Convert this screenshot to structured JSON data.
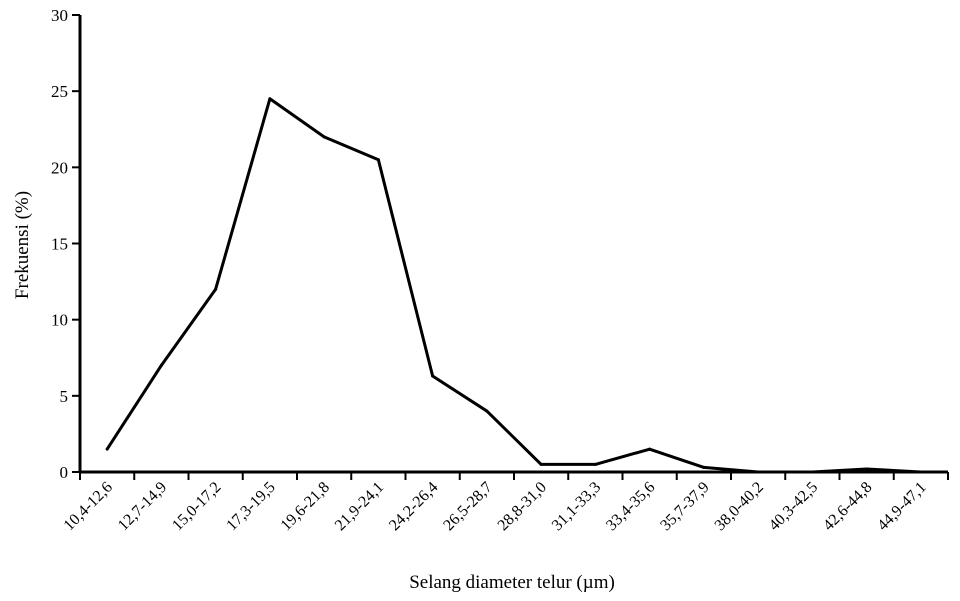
{
  "chart_data": {
    "type": "line",
    "title": "",
    "xlabel": "Selang diameter telur (µm)",
    "ylabel": "Frekuensi (%)",
    "ylim": [
      0,
      30
    ],
    "yticks": [
      0,
      5,
      10,
      15,
      20,
      25,
      30
    ],
    "grid": false,
    "legend": "none",
    "categories": [
      "10,4-12,6",
      "12,7-14,9",
      "15,0-17,2",
      "17,3-19,5",
      "19,6-21,8",
      "21,9-24,1",
      "24,2-26,4",
      "26,5-28,7",
      "28,8-31,0",
      "31,1-33,3",
      "33,4-35,6",
      "35,7-37,9",
      "38,0-40,2",
      "40,3-42,5",
      "42,6-44,8",
      "44,9-47,1"
    ],
    "series": [
      {
        "values": [
          1.5,
          7.0,
          12.0,
          24.5,
          22.0,
          20.5,
          6.3,
          4.0,
          0.5,
          0.5,
          1.5,
          0.3,
          0.0,
          0.0,
          0.2,
          0.0
        ],
        "color": "#000000"
      }
    ]
  }
}
